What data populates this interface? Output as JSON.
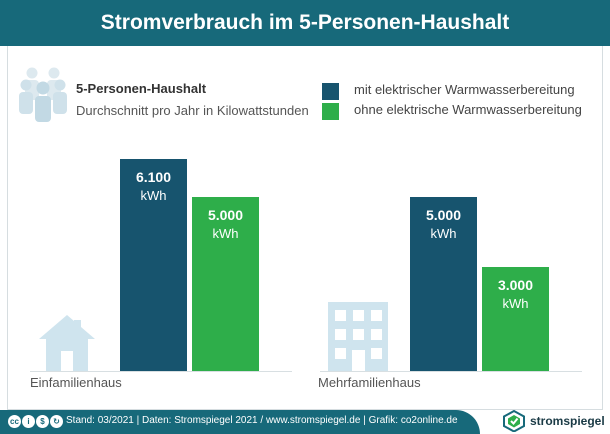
{
  "header": {
    "title": "Stromverbrauch im 5-Personen-Haushalt"
  },
  "legend": {
    "title": "5-Personen-Haushalt",
    "subtitle": "Durchschnitt pro Jahr in Kilowattstunden",
    "items": [
      {
        "label": "mit elektrischer Warmwasserbereitung",
        "color": "#17546e"
      },
      {
        "label": "ohne elektrische Warmwasserbereitung",
        "color": "#2eae4a"
      }
    ]
  },
  "chart_data": {
    "type": "bar",
    "categories": [
      "Einfamilienhaus",
      "Mehrfamilienhaus"
    ],
    "series": [
      {
        "name": "mit elektrischer Warmwasserbereitung",
        "color": "#17546e",
        "values": [
          6100,
          5000
        ],
        "labels": [
          "6.100",
          "5.000"
        ]
      },
      {
        "name": "ohne elektrische Warmwasserbereitung",
        "color": "#2eae4a",
        "values": [
          5000,
          3000
        ],
        "labels": [
          "5.000",
          "3.000"
        ]
      }
    ],
    "unit": "kWh",
    "ylim": [
      0,
      6100
    ],
    "grid": false,
    "legend_position": "top-right"
  },
  "icons": {
    "people": "people-group-icon",
    "house": "house-icon",
    "apartment": "apartment-building-icon",
    "logo": "stromspiegel-logo-icon"
  },
  "footer": {
    "text": "Stand: 03/2021  |  Daten: Stromspiegel 2021 / www.stromspiegel.de  |  Grafik: co2online.de",
    "logo_text": "stromspiegel"
  },
  "colors": {
    "header": "#17697a",
    "icon_light": "#cfe4ee"
  }
}
